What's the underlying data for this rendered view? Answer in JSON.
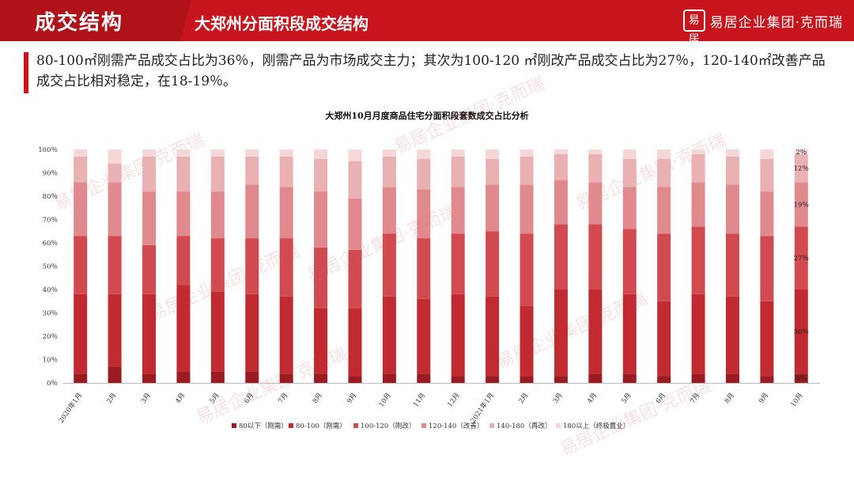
{
  "header": {
    "section_title": "成交结构",
    "page_title": "大郑州分面积段成交结构",
    "logo_text": "易居企业集团·克而瑞",
    "logo_mark": "易居"
  },
  "summary": "80-100㎡刚需产品成交占比为36％，刚需产品为市场成交主力；其次为100-120 ㎡刚改产品成交占比为27％，120-140㎡改善产品成交占比相对稳定，在18-19％。",
  "colors": {
    "brand": "#c8151d"
  },
  "chart_data": {
    "type": "bar",
    "stacked": true,
    "title": "大郑州10月月度商品住宅分面积段套数成交占比分析",
    "categories": [
      "2020年1月",
      "2月",
      "3月",
      "4月",
      "5月",
      "6月",
      "7月",
      "8月",
      "9月",
      "10月",
      "11月",
      "12月",
      "2021年1月",
      "2月",
      "3月",
      "4月",
      "5月",
      "6月",
      "7月",
      "8月",
      "9月",
      "10月"
    ],
    "ylim": [
      0,
      100
    ],
    "y_ticks": [
      "0％",
      "10％",
      "20％",
      "30％",
      "40％",
      "50％",
      "60％",
      "70％",
      "80％",
      "90％",
      "100％"
    ],
    "legend_position": "bottom",
    "series": [
      {
        "name": "80以下（刚需）",
        "color": "#9a1c22",
        "values": [
          4,
          7,
          4,
          5,
          5,
          5,
          4,
          4,
          3,
          4,
          4,
          3,
          3,
          3,
          3,
          4,
          4,
          3,
          4,
          4,
          3,
          4
        ]
      },
      {
        "name": "80-100（刚需）",
        "color": "#c02a30",
        "values": [
          34,
          31,
          34,
          37,
          34,
          33,
          33,
          28,
          29,
          33,
          32,
          35,
          34,
          30,
          37,
          36,
          34,
          32,
          34,
          33,
          32,
          36
        ]
      },
      {
        "name": "100-120（刚改）",
        "color": "#d14a50",
        "values": [
          25,
          25,
          21,
          21,
          23,
          24,
          25,
          26,
          25,
          27,
          26,
          26,
          28,
          31,
          28,
          28,
          28,
          29,
          29,
          27,
          28,
          27
        ]
      },
      {
        "name": "120-140（改善）",
        "color": "#e08a8e",
        "values": [
          23,
          23,
          23,
          19,
          20,
          23,
          22,
          24,
          22,
          20,
          21,
          20,
          20,
          21,
          19,
          18,
          18,
          20,
          19,
          21,
          19,
          19
        ]
      },
      {
        "name": "140-180（再改）",
        "color": "#eab1b3",
        "values": [
          11,
          8,
          15,
          15,
          15,
          12,
          13,
          14,
          16,
          13,
          13,
          13,
          11,
          12,
          11,
          12,
          12,
          12,
          12,
          12,
          14,
          12
        ]
      },
      {
        "name": "180以上（终极置业）",
        "color": "#f5d7d8",
        "values": [
          3,
          6,
          3,
          3,
          3,
          3,
          3,
          4,
          5,
          3,
          4,
          3,
          4,
          3,
          2,
          2,
          4,
          4,
          2,
          3,
          4,
          2
        ]
      }
    ],
    "data_labels": {
      "category": "10月",
      "values": [
        "4％",
        "36％",
        "27％",
        "19％",
        "12％",
        "2％"
      ]
    }
  }
}
